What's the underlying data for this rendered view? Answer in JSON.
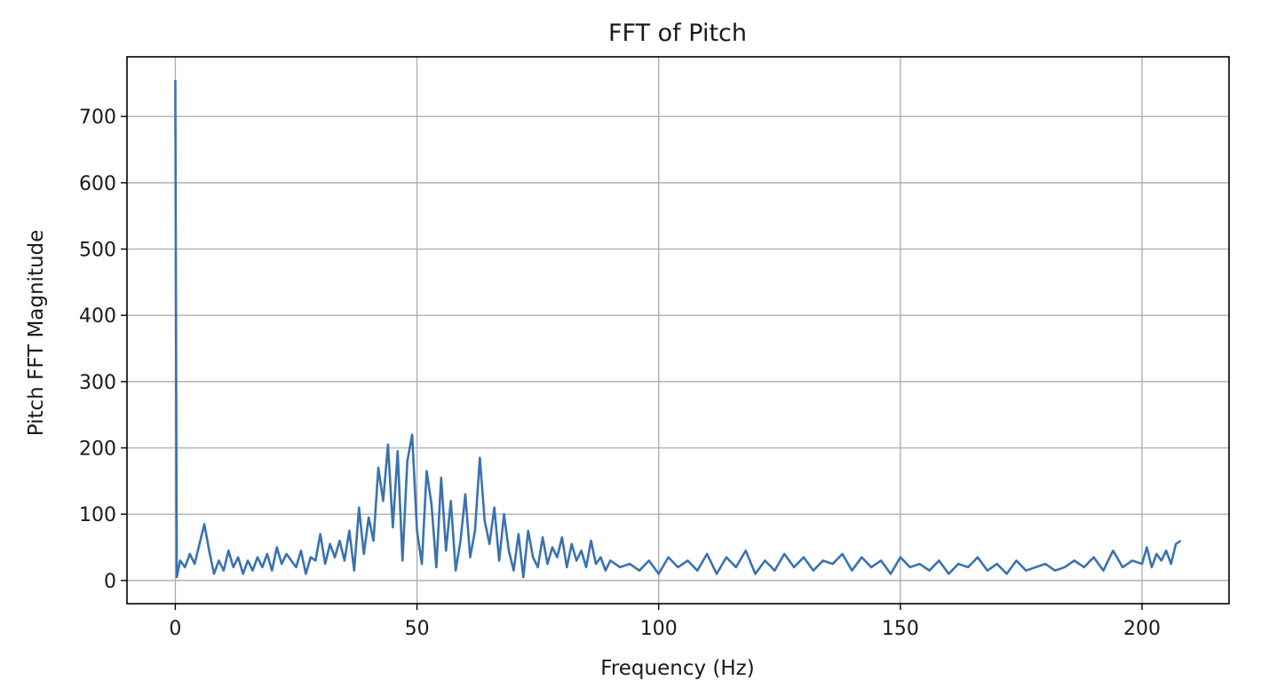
{
  "chart_data": {
    "type": "line",
    "title": "FFT of Pitch",
    "xlabel": "Frequency (Hz)",
    "ylabel": "Pitch FFT Magnitude",
    "xlim": [
      -10,
      218
    ],
    "ylim": [
      -35,
      790
    ],
    "grid": true,
    "x_ticks": [
      0,
      50,
      100,
      150,
      200
    ],
    "y_ticks": [
      0,
      100,
      200,
      300,
      400,
      500,
      600,
      700
    ],
    "x_tick_labels": [
      "0",
      "50",
      "100",
      "150",
      "200"
    ],
    "y_tick_labels": [
      "0",
      "100",
      "200",
      "300",
      "400",
      "500",
      "600",
      "700"
    ],
    "series": [
      {
        "color": "#3a72b0",
        "x": [
          0,
          0.3,
          1,
          2,
          3,
          4,
          5,
          6,
          7,
          8,
          9,
          10,
          11,
          12,
          13,
          14,
          15,
          16,
          17,
          18,
          19,
          20,
          21,
          22,
          23,
          24,
          25,
          26,
          27,
          28,
          29,
          30,
          31,
          32,
          33,
          34,
          35,
          36,
          37,
          38,
          39,
          40,
          41,
          42,
          43,
          44,
          45,
          46,
          47,
          48,
          49,
          50,
          51,
          52,
          53,
          54,
          55,
          56,
          57,
          58,
          59,
          60,
          61,
          62,
          63,
          64,
          65,
          66,
          67,
          68,
          69,
          70,
          71,
          72,
          73,
          74,
          75,
          76,
          77,
          78,
          79,
          80,
          81,
          82,
          83,
          84,
          85,
          86,
          87,
          88,
          89,
          90,
          92,
          94,
          96,
          98,
          100,
          102,
          104,
          106,
          108,
          110,
          112,
          114,
          116,
          118,
          120,
          122,
          124,
          126,
          128,
          130,
          132,
          134,
          136,
          138,
          140,
          142,
          144,
          146,
          148,
          150,
          152,
          154,
          156,
          158,
          160,
          162,
          164,
          166,
          168,
          170,
          172,
          174,
          176,
          178,
          180,
          182,
          184,
          186,
          188,
          190,
          192,
          194,
          196,
          198,
          200,
          201,
          202,
          203,
          204,
          205,
          206,
          207,
          208
        ],
        "y": [
          755,
          5,
          30,
          20,
          40,
          25,
          55,
          85,
          45,
          10,
          30,
          15,
          45,
          20,
          35,
          10,
          30,
          15,
          35,
          20,
          40,
          15,
          50,
          25,
          40,
          30,
          20,
          45,
          10,
          35,
          30,
          70,
          25,
          55,
          35,
          60,
          30,
          75,
          15,
          110,
          40,
          95,
          60,
          170,
          120,
          205,
          80,
          195,
          30,
          180,
          220,
          75,
          25,
          165,
          115,
          20,
          155,
          45,
          120,
          15,
          60,
          130,
          35,
          75,
          185,
          90,
          55,
          110,
          30,
          100,
          45,
          15,
          70,
          5,
          75,
          35,
          20,
          65,
          25,
          50,
          35,
          65,
          20,
          55,
          30,
          45,
          20,
          60,
          25,
          35,
          15,
          30,
          20,
          25,
          15,
          30,
          10,
          35,
          20,
          30,
          15,
          40,
          10,
          35,
          20,
          45,
          10,
          30,
          15,
          40,
          20,
          35,
          15,
          30,
          25,
          40,
          15,
          35,
          20,
          30,
          10,
          35,
          20,
          25,
          15,
          30,
          10,
          25,
          20,
          35,
          15,
          25,
          10,
          30,
          15,
          20,
          25,
          15,
          20,
          30,
          20,
          35,
          15,
          45,
          20,
          30,
          25,
          50,
          20,
          40,
          30,
          45,
          25,
          55,
          60
        ]
      }
    ]
  }
}
